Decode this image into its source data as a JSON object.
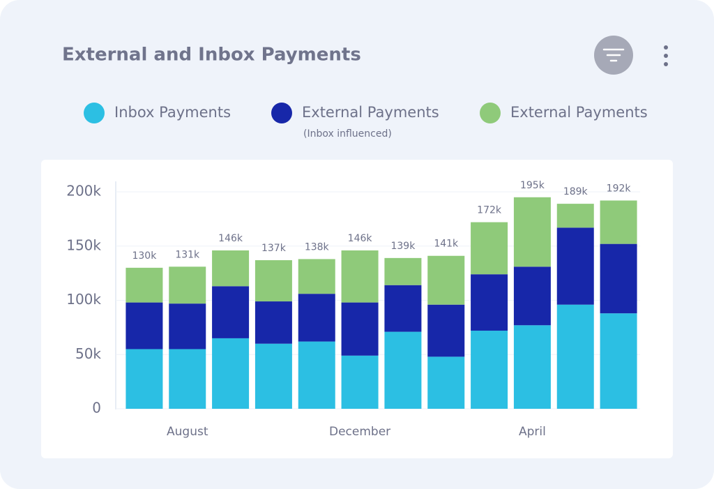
{
  "chart_data": {
    "type": "stacked-bar",
    "title": "External and Inbox Payments",
    "categories": [
      null,
      "August",
      null,
      null,
      null,
      "December",
      null,
      null,
      null,
      "April",
      null,
      null
    ],
    "series": [
      {
        "name": "Inbox Payments",
        "color": "#2cbfe3",
        "values": [
          55000,
          55000,
          65000,
          60000,
          62000,
          49000,
          71000,
          48000,
          72000,
          77000,
          96000,
          88000
        ]
      },
      {
        "name": "External Payments",
        "subtitle": "(Inbox influenced)",
        "color": "#1727a9",
        "values": [
          43000,
          42000,
          48000,
          39000,
          44000,
          49000,
          43000,
          48000,
          52000,
          54000,
          71000,
          64000
        ]
      },
      {
        "name": "External Payments",
        "color": "#8fca7a",
        "values": [
          32000,
          34000,
          33000,
          38000,
          32000,
          48000,
          25000,
          45000,
          48000,
          64000,
          22000,
          40000
        ]
      }
    ],
    "totals": {
      "values": [
        130000,
        131000,
        146000,
        137000,
        138000,
        146000,
        139000,
        141000,
        172000,
        195000,
        189000,
        192000
      ],
      "value_labels": [
        "130k",
        "131k",
        "146k",
        "137k",
        "138k",
        "146k",
        "139k",
        "141k",
        "172k",
        "195k",
        "189k",
        "192k"
      ]
    },
    "ylim": [
      0,
      200000
    ],
    "yticks": [
      0,
      {
        "value": 50000,
        "label": "50k"
      },
      {
        "value": 100000,
        "label": "100k"
      },
      {
        "value": 150000,
        "label": "150k"
      },
      {
        "value": 200000,
        "label": "200k"
      }
    ],
    "grid": true
  }
}
